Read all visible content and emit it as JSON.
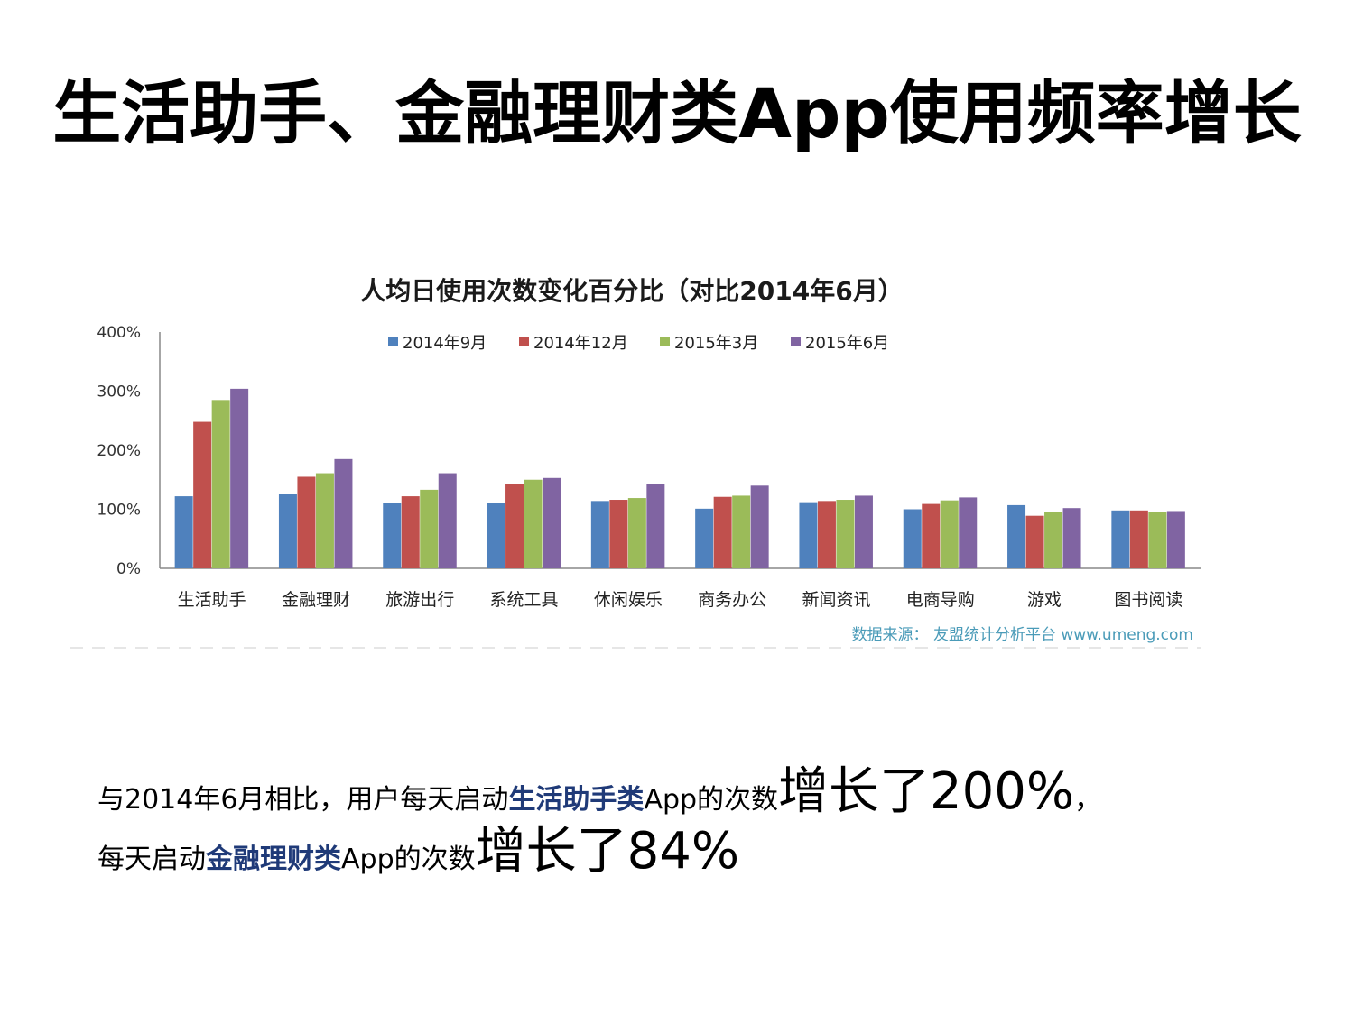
{
  "slide": {
    "title": "生活助手、金融理财类App使用频率增长"
  },
  "chart_data": {
    "type": "bar",
    "title": "人均日使用次数变化百分比（对比2014年6月）",
    "categories": [
      "生活助手",
      "金融理财",
      "旅游出行",
      "系统工具",
      "休闲娱乐",
      "商务办公",
      "新闻资讯",
      "电商导购",
      "游戏",
      "图书阅读"
    ],
    "series": [
      {
        "name": "2014年9月",
        "color": "#4f81bd",
        "values": [
          122,
          126,
          110,
          110,
          114,
          101,
          112,
          100,
          107,
          98
        ]
      },
      {
        "name": "2014年12月",
        "color": "#c0504d",
        "values": [
          248,
          155,
          122,
          142,
          116,
          121,
          114,
          109,
          89,
          98
        ]
      },
      {
        "name": "2015年3月",
        "color": "#9bbb59",
        "values": [
          285,
          161,
          133,
          150,
          119,
          123,
          116,
          115,
          95,
          95
        ]
      },
      {
        "name": "2015年6月",
        "color": "#8064a2",
        "values": [
          304,
          185,
          161,
          153,
          142,
          140,
          123,
          120,
          102,
          97
        ]
      }
    ],
    "y_ticks": [
      "0%",
      "100%",
      "200%",
      "300%",
      "400%"
    ],
    "ylim": [
      0,
      400
    ],
    "legend_position": "top",
    "grid": false,
    "source": "数据来源： 友盟统计分析平台 www.umeng.com"
  },
  "summary": {
    "line1": {
      "pre": "与2014年6月相比，用户每天启动",
      "highlight": "生活助手类",
      "mid": "App的次数",
      "big": "增长了200%",
      "post": "，"
    },
    "line2": {
      "pre": "每天启动",
      "highlight": "金融理财类",
      "mid": "App的次数",
      "big": "增长了84%"
    }
  }
}
